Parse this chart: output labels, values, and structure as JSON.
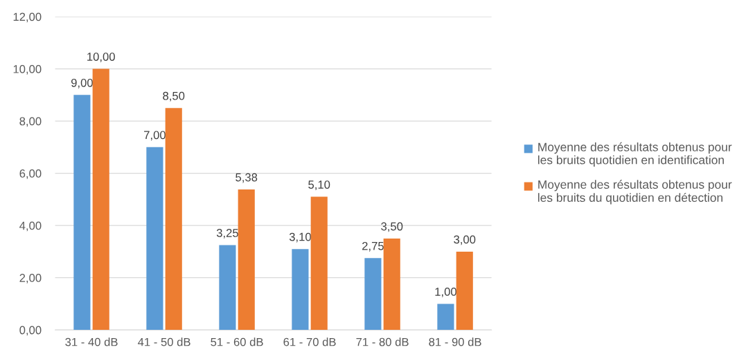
{
  "chart_data": {
    "type": "bar",
    "categories": [
      "31 - 40 dB",
      "41 - 50 dB",
      "51 - 60 dB",
      "61 - 70 dB",
      "71 - 80 dB",
      "81 - 90 dB"
    ],
    "series": [
      {
        "name": "Moyenne des résultats obtenus pour\nles bruits quotidien en identification",
        "color": "#5b9bd5",
        "values": [
          9.0,
          7.0,
          3.25,
          3.1,
          2.75,
          1.0
        ],
        "value_labels": [
          "9,00",
          "7,00",
          "3,25",
          "3,10",
          "2,75",
          "1,00"
        ]
      },
      {
        "name": "Moyenne des résultats obtenus pour\nles bruits du quotidien en détection",
        "color": "#ed7d31",
        "values": [
          10.0,
          8.5,
          5.38,
          5.1,
          3.5,
          3.0
        ],
        "value_labels": [
          "10,00",
          "8,50",
          "5,38",
          "5,10",
          "3,50",
          "3,00"
        ]
      }
    ],
    "ylim": [
      0,
      12
    ],
    "yticks": [
      {
        "value": 0,
        "label": "0,00"
      },
      {
        "value": 2,
        "label": "2,00"
      },
      {
        "value": 4,
        "label": "4,00"
      },
      {
        "value": 6,
        "label": "6,00"
      },
      {
        "value": 8,
        "label": "8,00"
      },
      {
        "value": 10,
        "label": "10,00"
      },
      {
        "value": 12,
        "label": "12,00"
      }
    ],
    "grid": "y",
    "legend": "right"
  }
}
